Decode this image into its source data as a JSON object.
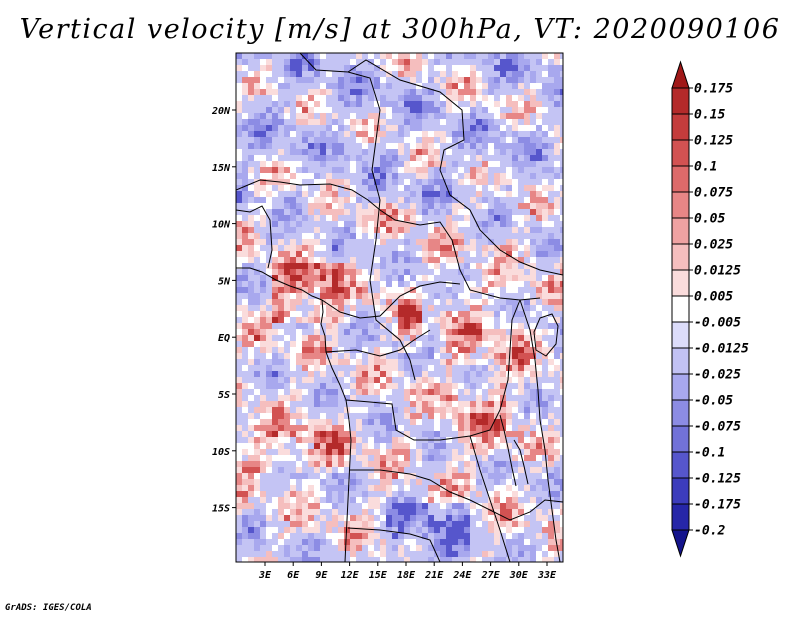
{
  "title": "Vertical velocity [m/s] at 300hPa, VT: 2020090106",
  "footer": "GrADS: IGES/COLA",
  "map": {
    "lon_ticks": [
      "3E",
      "6E",
      "9E",
      "12E",
      "15E",
      "18E",
      "21E",
      "24E",
      "27E",
      "30E",
      "33E"
    ],
    "lat_ticks": [
      "20N",
      "15N",
      "10N",
      "5N",
      "EQ",
      "5S",
      "10S",
      "15S"
    ]
  },
  "colorbar": {
    "labels": [
      "0.175",
      "0.15",
      "0.125",
      "0.1",
      "0.075",
      "0.05",
      "0.025",
      "0.0125",
      "0.005",
      "-0.005",
      "-0.0125",
      "-0.025",
      "-0.05",
      "-0.075",
      "-0.1",
      "-0.125",
      "-0.175",
      "-0.2"
    ],
    "colors": [
      "#a01818",
      "#b42a2a",
      "#c43c3c",
      "#d25252",
      "#dd6a6a",
      "#e78686",
      "#efa2a2",
      "#f5bebe",
      "#fadcdc",
      "#ffffff",
      "#dcdcfa",
      "#c2c2f4",
      "#a8a8ee",
      "#8c8ce4",
      "#7272d8",
      "#5656cc",
      "#3c3cbc",
      "#2626a8",
      "#14148c"
    ]
  }
}
